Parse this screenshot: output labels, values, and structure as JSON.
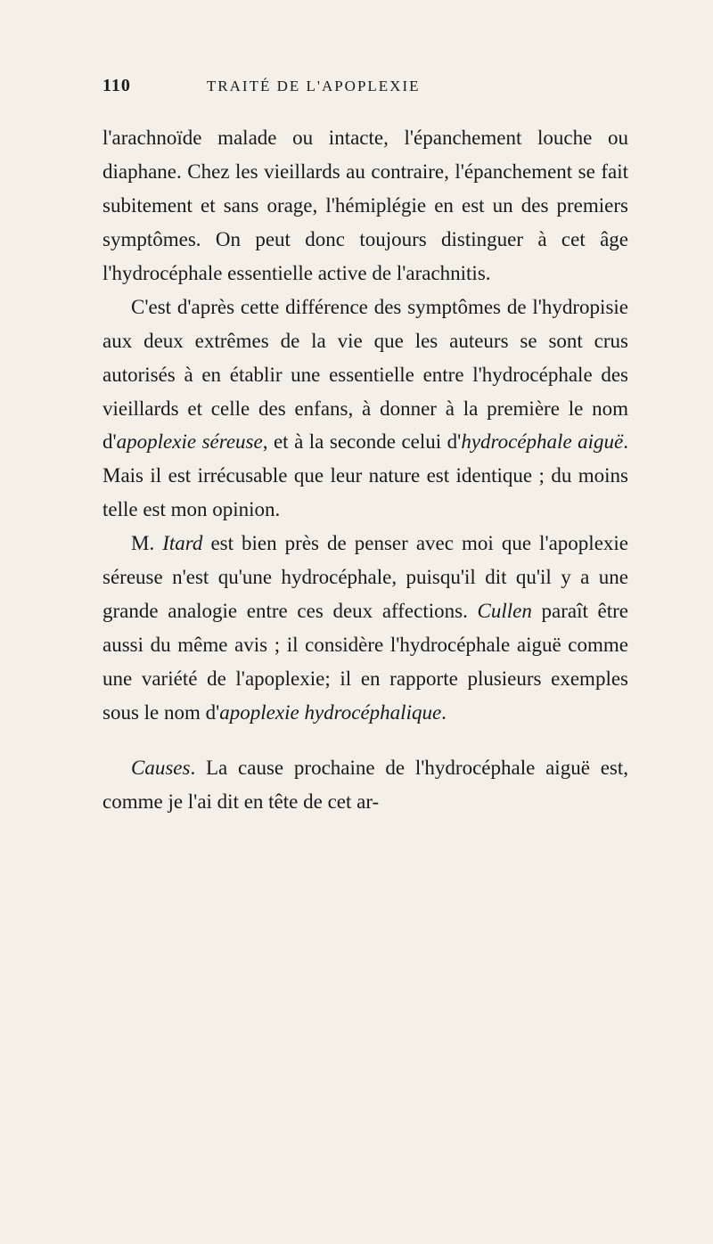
{
  "page_number": "110",
  "running_title": "TRAITÉ DE L'APOPLEXIE",
  "paragraphs": [
    {
      "indent": false,
      "text": "l'arachnoïde malade ou intacte, l'épanchement louche ou diaphane. Chez les vieillards au contraire, l'épanchement se fait subitement et sans orage, l'hémiplégie en est un des premiers symptômes. On peut donc toujours distinguer à cet âge l'hydrocéphale essentielle active de l'arachnitis."
    },
    {
      "indent": true,
      "segments": [
        {
          "text": "C'est d'après cette différence des symptômes de l'hydropisie aux deux extrêmes de la vie que les auteurs se sont crus autorisés à en établir une essentielle entre l'hydrocéphale des vieillards et celle des enfans, à donner à la première le nom d'",
          "italic": false
        },
        {
          "text": "apoplexie séreuse",
          "italic": true
        },
        {
          "text": ", et à la seconde celui d'",
          "italic": false
        },
        {
          "text": "hydrocéphale aiguë",
          "italic": true
        },
        {
          "text": ". Mais il est irrécusable que leur nature est identique ; du moins telle est mon opinion.",
          "italic": false
        }
      ]
    },
    {
      "indent": true,
      "segments": [
        {
          "text": "M. ",
          "italic": false
        },
        {
          "text": "Itard",
          "italic": true
        },
        {
          "text": " est bien près de penser avec moi que l'apoplexie séreuse n'est qu'une hydrocéphale, puisqu'il dit qu'il y a une grande analogie entre ces deux affections. ",
          "italic": false
        },
        {
          "text": "Cullen",
          "italic": true
        },
        {
          "text": " paraît être aussi du même avis ; il considère l'hydrocéphale aiguë comme une variété de l'apoplexie; il en rapporte plusieurs exemples sous le nom d'",
          "italic": false
        },
        {
          "text": "apoplexie hydrocéphalique",
          "italic": true
        },
        {
          "text": ".",
          "italic": false
        }
      ]
    },
    {
      "indent": true,
      "segments": [
        {
          "text": "Causes",
          "italic": true
        },
        {
          "text": ". La cause prochaine de l'hydrocéphale aiguë est, comme je l'ai dit en tête de cet ar-",
          "italic": false
        }
      ]
    }
  ],
  "colors": {
    "background": "#f4f0e8",
    "text": "#1a1a1a"
  },
  "typography": {
    "body_fontsize": 23,
    "header_fontsize": 17,
    "pagenum_fontsize": 20,
    "line_height": 1.65
  }
}
